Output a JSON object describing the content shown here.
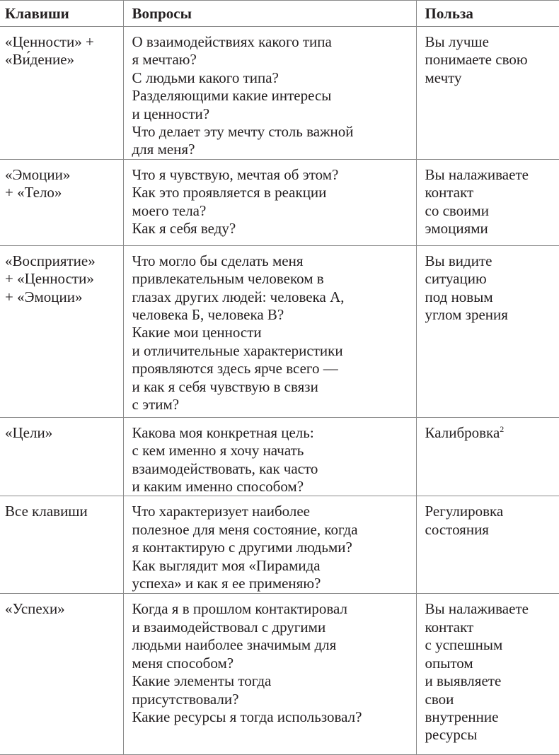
{
  "headers": [
    "Клавиши",
    "Вопросы",
    "Польза"
  ],
  "rows": [
    {
      "keys": [
        "«Ценности» +",
        "«Ви́дение»"
      ],
      "questions": [
        "О взаимодействиях какого типа",
        "я мечтаю?",
        "С людьми какого типа?",
        "Разделяющими какие интересы",
        "и ценности?",
        "Что делает эту мечту столь важной",
        "для меня?"
      ],
      "benefit": [
        "Вы лучше",
        "понимаете свою",
        "мечту"
      ]
    },
    {
      "keys": [
        "«Эмоции»",
        "+ «Тело»"
      ],
      "questions": [
        "Что я чувствую, мечтая об этом?",
        "Как это проявляется в реакции",
        "моего тела?",
        "Как я себя веду?"
      ],
      "benefit": [
        "Вы налаживаете",
        "контакт",
        "со своими",
        "эмоциями"
      ]
    },
    {
      "keys": [
        "«Восприятие»",
        "+ «Ценности»",
        "+ «Эмоции»"
      ],
      "questions": [
        "Что могло бы сделать меня",
        "привлекательным человеком в",
        "глазах других людей: человека А,",
        "человека Б, человека В?",
        "Какие мои ценности",
        "и отличительные характеристики",
        "проявляются здесь ярче всего —",
        "и как я себя чувствую в связи",
        "с этим?"
      ],
      "benefit": [
        "Вы видите",
        "ситуацию",
        "под новым",
        "углом зрения"
      ]
    },
    {
      "keys": [
        "«Цели»"
      ],
      "questions": [
        "Какова моя конкретная цель:",
        "с кем именно я хочу начать",
        "взаимодействовать, как часто",
        "и каким именно способом?"
      ],
      "benefit": [
        "Калибровка"
      ],
      "benefit_footnote": "2"
    },
    {
      "keys": [
        "Все клавиши"
      ],
      "questions": [
        "Что характеризует наиболее",
        "полезное для меня состояние, когда",
        "я контактирую с другими людьми?",
        "Как выглядит моя «Пирамида",
        "успеха» и как я ее применяю?"
      ],
      "benefit": [
        "Регулировка",
        "состояния"
      ]
    },
    {
      "keys": [
        "«Успехи»"
      ],
      "questions": [
        "Когда я в прошлом контактировал",
        "и взаимодействовал с другими",
        "людьми наиболее значимым для",
        "меня способом?",
        "Какие элементы тогда",
        "присутствовали?",
        "Какие ресурсы я тогда использовал?"
      ],
      "benefit": [
        "Вы налаживаете",
        "контакт",
        "с успешным",
        "опытом",
        "и выявляете",
        "свои",
        "внутренние",
        "ресурсы"
      ]
    }
  ]
}
